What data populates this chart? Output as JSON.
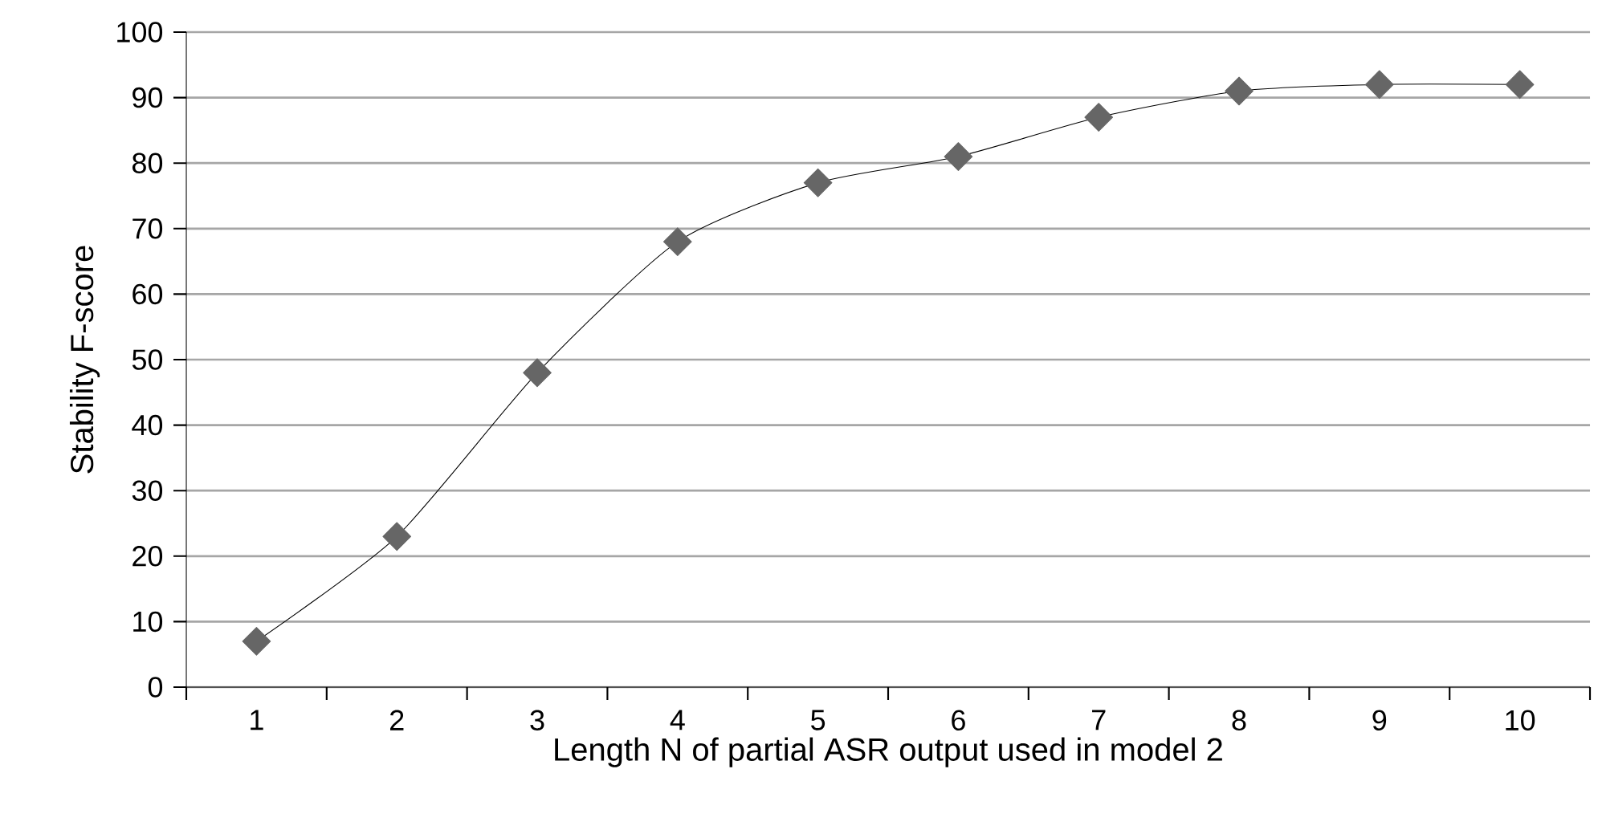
{
  "chart_data": {
    "type": "line",
    "xlabel": "Length N of partial ASR output used in model 2",
    "ylabel": "Stability F-score",
    "categories": [
      "1",
      "2",
      "3",
      "4",
      "5",
      "6",
      "7",
      "8",
      "9",
      "10"
    ],
    "series": [
      {
        "color": "#666666",
        "values": [
          7,
          23,
          48,
          68,
          77,
          81,
          87,
          91,
          92,
          92
        ]
      }
    ],
    "ylim": [
      0,
      100
    ],
    "yticks": [
      0,
      10,
      20,
      30,
      40,
      50,
      60,
      70,
      80,
      90,
      100
    ],
    "grid": "y",
    "marker": "diamond",
    "line_style": "solid"
  }
}
